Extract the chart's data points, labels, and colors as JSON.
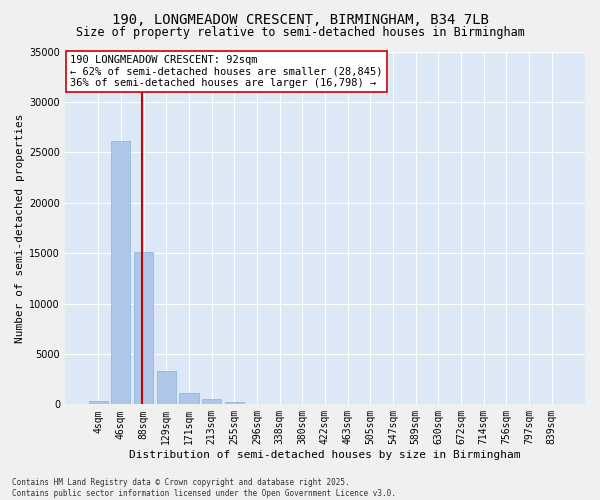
{
  "title": "190, LONGMEADOW CRESCENT, BIRMINGHAM, B34 7LB",
  "subtitle": "Size of property relative to semi-detached houses in Birmingham",
  "xlabel": "Distribution of semi-detached houses by size in Birmingham",
  "ylabel": "Number of semi-detached properties",
  "categories": [
    "4sqm",
    "46sqm",
    "88sqm",
    "129sqm",
    "171sqm",
    "213sqm",
    "255sqm",
    "296sqm",
    "338sqm",
    "380sqm",
    "422sqm",
    "463sqm",
    "505sqm",
    "547sqm",
    "589sqm",
    "630sqm",
    "672sqm",
    "714sqm",
    "756sqm",
    "797sqm",
    "839sqm"
  ],
  "values": [
    380,
    26100,
    15100,
    3300,
    1100,
    480,
    200,
    60,
    20,
    8,
    4,
    2,
    1,
    0,
    0,
    0,
    0,
    0,
    0,
    0,
    0
  ],
  "bar_color": "#aec6e8",
  "bar_edge_color": "#8ab4d8",
  "redline_index": 2,
  "annotation_text": "190 LONGMEADOW CRESCENT: 92sqm\n← 62% of semi-detached houses are smaller (28,845)\n36% of semi-detached houses are larger (16,798) →",
  "annotation_box_color": "#ffffff",
  "annotation_box_edge_color": "#cc0000",
  "redline_color": "#cc0000",
  "ylim": [
    0,
    35000
  ],
  "yticks": [
    0,
    5000,
    10000,
    15000,
    20000,
    25000,
    30000,
    35000
  ],
  "bg_color": "#dce8f5",
  "grid_color": "#ffffff",
  "fig_bg_color": "#f0f0f0",
  "footer": "Contains HM Land Registry data © Crown copyright and database right 2025.\nContains public sector information licensed under the Open Government Licence v3.0.",
  "title_fontsize": 10,
  "subtitle_fontsize": 8.5,
  "axis_label_fontsize": 8,
  "tick_fontsize": 7,
  "annotation_fontsize": 7.5
}
